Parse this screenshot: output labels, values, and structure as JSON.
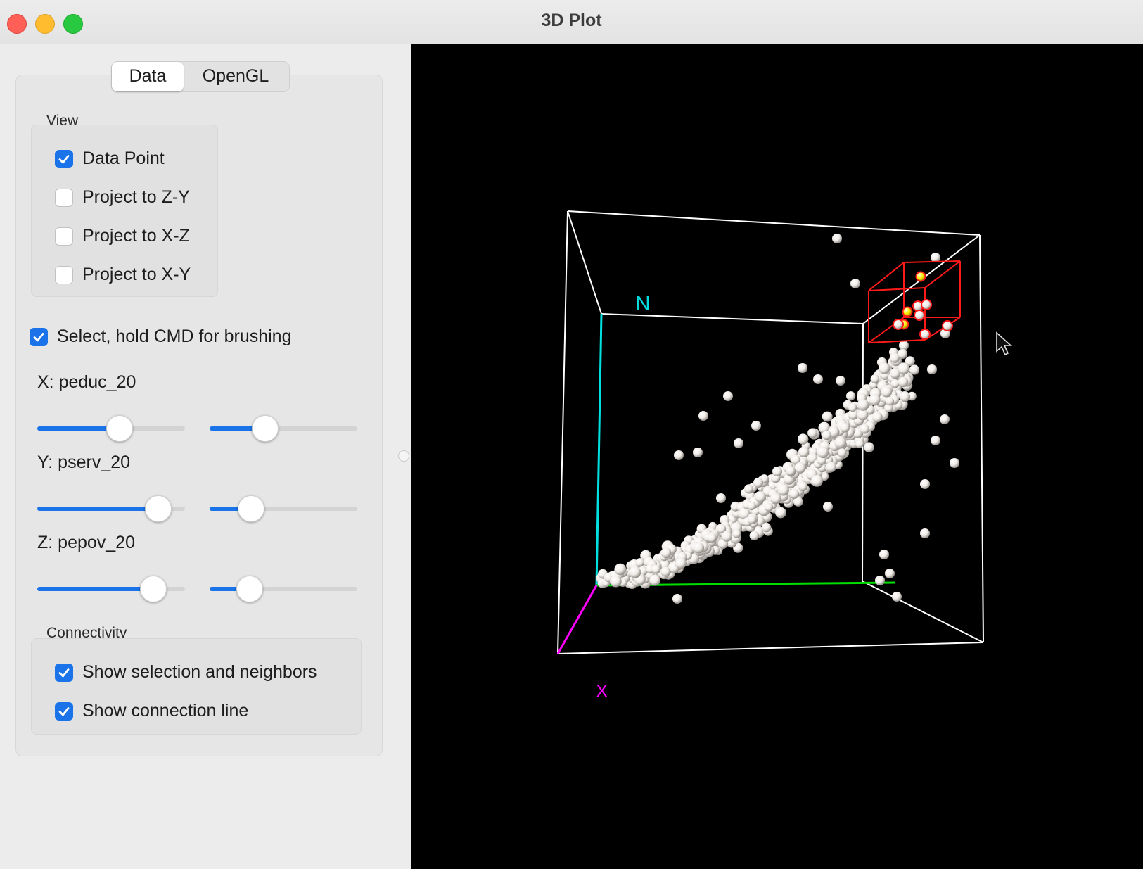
{
  "window": {
    "title": "3D Plot"
  },
  "tabs": [
    {
      "label": "Data",
      "active": true
    },
    {
      "label": "OpenGL",
      "active": false
    }
  ],
  "view": {
    "label": "View",
    "options": [
      {
        "label": "Data Point",
        "checked": true
      },
      {
        "label": "Project to Z-Y",
        "checked": false
      },
      {
        "label": "Project to X-Z",
        "checked": false
      },
      {
        "label": "Project to X-Y",
        "checked": false
      }
    ]
  },
  "select": {
    "label": "Select, hold CMD for brushing",
    "checked": true
  },
  "axes_controls": [
    {
      "label": "X: peduc_20",
      "slider1": 0.57,
      "slider2": 0.35
    },
    {
      "label": "Y: pserv_20",
      "slider1": 0.89,
      "slider2": 0.23
    },
    {
      "label": "Z: pepov_20",
      "slider1": 0.85,
      "slider2": 0.22
    }
  ],
  "connectivity": {
    "label": "Connectivity",
    "options": [
      {
        "label": "Show selection and neighbors",
        "checked": true
      },
      {
        "label": "Show connection line",
        "checked": true
      }
    ]
  },
  "plot": {
    "axis_letters": {
      "n": "N",
      "x": "X"
    },
    "colors": {
      "background": "#000000",
      "cube": "#ffffff",
      "z_axis": "#00e0e0",
      "x_axis": "#ff00ff",
      "y_axis": "#00dd00",
      "selection_box": "#ff1a1a",
      "points": "#f0ece8",
      "selected_points": "#ffee00"
    }
  }
}
